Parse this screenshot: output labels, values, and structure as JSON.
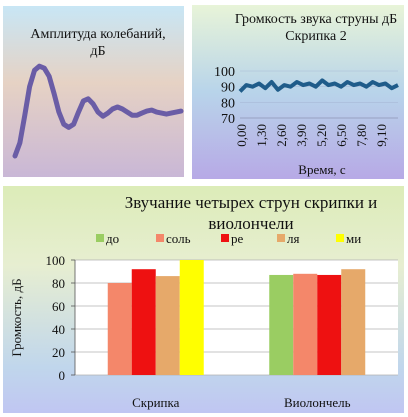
{
  "chart_data": [
    {
      "type": "line",
      "title": "Амплитуда колебаний, дБ",
      "series": [
        {
          "color": "#6a5da6",
          "x": [
            0,
            1,
            2,
            3,
            4,
            5,
            6,
            7,
            8,
            9,
            10,
            11,
            12,
            13,
            14,
            15,
            16,
            17,
            18,
            19,
            20,
            21,
            22,
            23,
            24,
            25,
            26,
            27,
            28,
            29,
            30,
            31,
            32,
            33,
            34
          ],
          "values": [
            2,
            15,
            42,
            70,
            86,
            90,
            88,
            80,
            63,
            45,
            33,
            30,
            33,
            45,
            56,
            58,
            53,
            45,
            41,
            44,
            48,
            50,
            48,
            45,
            42,
            42,
            44,
            46,
            47,
            45,
            44,
            43,
            44,
            45,
            46
          ]
        }
      ],
      "ylim": [
        0,
        100
      ]
    },
    {
      "type": "line",
      "title": "Громкость звука струны дБ Скрипка 2",
      "xlabel": "Время, с",
      "yticks": [
        "100",
        "90",
        "80",
        "70"
      ],
      "ylim": [
        70,
        100
      ],
      "xticks": [
        "0,00",
        "1,30",
        "2,60",
        "3,90",
        "5,20",
        "6,50",
        "7,80",
        "9,10"
      ],
      "xlim": [
        0,
        10
      ],
      "series": [
        {
          "color": "#1f5c8a",
          "x": [
            0,
            0.4,
            0.8,
            1.2,
            1.6,
            2.0,
            2.4,
            2.8,
            3.2,
            3.6,
            4.0,
            4.4,
            4.8,
            5.2,
            5.6,
            6.0,
            6.4,
            6.8,
            7.2,
            7.6,
            8.0,
            8.4,
            8.8,
            9.2,
            9.6,
            10.0
          ],
          "values": [
            87,
            91,
            90,
            92,
            89,
            93,
            88,
            91,
            90,
            93,
            91,
            92,
            90,
            94,
            91,
            92,
            90,
            93,
            91,
            92,
            90,
            93,
            91,
            92,
            89,
            91
          ]
        }
      ]
    },
    {
      "type": "bar",
      "title": "Звучание четырех струн скрипки и виолончели",
      "ylabel": "Громкость, дБ",
      "categories": [
        "Скрипка",
        "Виолончель"
      ],
      "yticks": [
        "0",
        "20",
        "40",
        "60",
        "80",
        "100"
      ],
      "ylim": [
        0,
        100
      ],
      "grid": true,
      "legend_position": "top",
      "series": [
        {
          "name": "до",
          "color": "#9acd62",
          "values": [
            null,
            87
          ]
        },
        {
          "name": "соль",
          "color": "#f4876a",
          "values": [
            80,
            88
          ]
        },
        {
          "name": "ре",
          "color": "#ee1111",
          "values": [
            92,
            87
          ]
        },
        {
          "name": "ля",
          "color": "#e6a96a",
          "values": [
            86,
            92
          ]
        },
        {
          "name": "ми",
          "color": "#ffff00",
          "values": [
            100,
            null
          ]
        }
      ]
    }
  ]
}
